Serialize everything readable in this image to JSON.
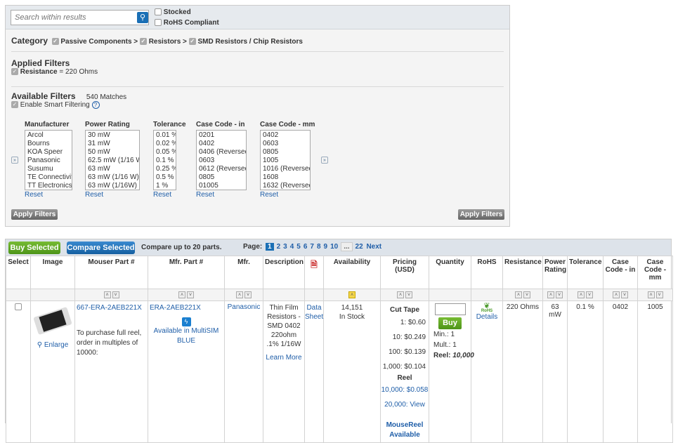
{
  "search": {
    "placeholder": "Search within results",
    "stocked": "Stocked",
    "rohs": "RoHS Compliant"
  },
  "category": {
    "label": "Category",
    "items": [
      "Passive Components >",
      "Resistors >",
      "SMD Resistors / Chip Resistors"
    ]
  },
  "applied": {
    "title": "Applied Filters",
    "filter": "Resistance",
    "value": "= 220 Ohms"
  },
  "available": {
    "title": "Available Filters",
    "matches": "540 Matches",
    "smart": "Enable Smart Filtering",
    "help": "?"
  },
  "filter_columns": [
    {
      "title": "Manufacturer",
      "options": [
        "Arcol",
        "Bourns",
        "KOA Speer",
        "Panasonic",
        "Susumu",
        "TE Connectivity",
        "TT Electronics"
      ],
      "reset": "Reset"
    },
    {
      "title": "Power Rating",
      "options": [
        "30 mW",
        "31 mW",
        "50 mW",
        "62.5 mW (1/16 W)",
        "63 mW",
        "63 mW (1/16 W)",
        "63 mW (1/16W)"
      ],
      "reset": "Reset"
    },
    {
      "title": "Tolerance",
      "options": [
        "0.01 %",
        "0.02 %",
        "0.05 %",
        "0.1 %",
        "0.25 %",
        "0.5 %",
        "1 %"
      ],
      "reset": "Reset"
    },
    {
      "title": "Case Code - in",
      "options": [
        "0201",
        "0402",
        "0406 (Reversed)",
        "0603",
        "0612 (Reversed)",
        "0805",
        "01005"
      ],
      "reset": "Reset"
    },
    {
      "title": "Case Code - mm",
      "options": [
        "0402",
        "0603",
        "0805",
        "1005",
        "1016 (Reversed)",
        "1608",
        "1632 (Reversed)"
      ],
      "reset": "Reset"
    }
  ],
  "apply_filters": "Apply Filters",
  "toolbar": {
    "buy_selected": "Buy Selected",
    "compare_selected": "Compare Selected",
    "compare_note": "Compare up to 20 parts.",
    "page_label": "Page:",
    "pages": [
      "1",
      "2",
      "3",
      "4",
      "5",
      "6",
      "7",
      "8",
      "9",
      "10",
      "...",
      "22"
    ],
    "current_page": "1",
    "next": "Next"
  },
  "columns": [
    "Select",
    "Image",
    "Mouser Part #",
    "Mfr. Part #",
    "Mfr.",
    "Description",
    "",
    "Availability",
    "Pricing (USD)",
    "Quantity",
    "RoHS",
    "Resistance",
    "Power Rating",
    "Tolerance",
    "Case Code - in",
    "Case Code - mm"
  ],
  "row": {
    "enlarge": "Enlarge",
    "mouser_part": "667-ERA-2AEB221X",
    "reel_note": "To purchase full reel, order in multiples of 10000:",
    "mfr_part": "ERA-2AEB221X",
    "multisim": "Available in MultiSIM BLUE",
    "mfr": "Panasonic",
    "description": "Thin Film Resistors - SMD 0402 220ohm .1% 1/16W",
    "learn_more": "Learn More",
    "datasheet": "Data Sheet",
    "availability_qty": "14,151",
    "availability_status": "In Stock",
    "cut_tape": "Cut Tape",
    "cut_tape_prices": [
      "1: $0.60",
      "10: $0.249",
      "100: $0.139",
      "1,000: $0.104"
    ],
    "reel": "Reel",
    "reel_prices": [
      "10,000: $0.058",
      "20,000: View"
    ],
    "mousereel": "MouseReel Available",
    "buy": "Buy",
    "min": "Min.: 1",
    "mult": "Mult.: 1",
    "reel_label": "Reel:",
    "reel_qty": "10,000",
    "rohs_logo": "RoHS",
    "rohs_details": "Details",
    "resistance": "220 Ohms",
    "power": "63 mW",
    "tolerance": "0.1 %",
    "case_in": "0402",
    "case_mm": "1005"
  },
  "colors": {
    "link": "#1f5ea8",
    "buy_green": "#5aa520",
    "compare_blue": "#1a6fb5"
  }
}
